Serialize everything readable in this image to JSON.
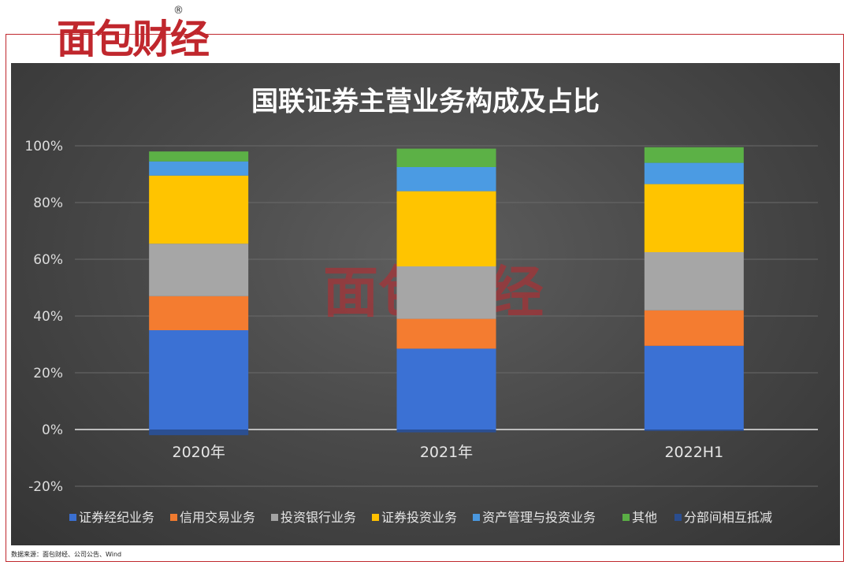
{
  "brand": {
    "name": "面包财经",
    "reg": "®"
  },
  "source_note": "数据来源：面包财经、公司公告、Wind",
  "colors": {
    "证券经纪业务": "#3a6fd0",
    "信用交易业务": "#ef7a2f",
    "投资银行业务": "#a3a3a3",
    "证券投资业务": "#ffc000",
    "资产管理与投资业务": "#4a98df",
    "其他": "#5aae45",
    "分部间相互抵减": "#2a4d8f"
  },
  "chart_data": {
    "type": "bar",
    "stacked": true,
    "title": "国联证券主营业务构成及占比",
    "categories": [
      "2020年",
      "2021年",
      "2022H1"
    ],
    "ylim": [
      -20,
      100
    ],
    "yticks": [
      "100%",
      "80%",
      "60%",
      "40%",
      "20%",
      "0%",
      "-20%"
    ],
    "ytick_values": [
      100,
      80,
      60,
      40,
      20,
      0,
      -20
    ],
    "grid": true,
    "legend_position": "bottom",
    "series": [
      {
        "name": "证券经纪业务",
        "values": [
          35,
          28.5,
          29.5
        ]
      },
      {
        "name": "信用交易业务",
        "values": [
          12,
          10.5,
          12.5
        ]
      },
      {
        "name": "投资银行业务",
        "values": [
          18.5,
          18.5,
          20.5
        ]
      },
      {
        "name": "证券投资业务",
        "values": [
          24,
          26.5,
          24
        ]
      },
      {
        "name": "资产管理与投资业务",
        "values": [
          5,
          8.5,
          7.5
        ]
      },
      {
        "name": "其他",
        "values": [
          3.5,
          6.5,
          5.5
        ]
      },
      {
        "name": "分部间相互抵减",
        "values": [
          -2,
          -1,
          -0.5
        ]
      }
    ]
  }
}
